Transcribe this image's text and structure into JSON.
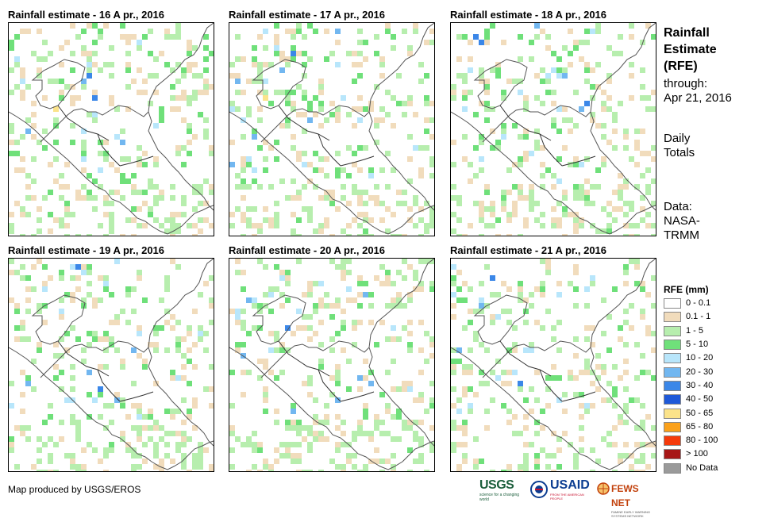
{
  "panels": [
    {
      "title": "Rainfall estimate - 16 A pr., 2016",
      "seed": 16
    },
    {
      "title": "Rainfall estimate - 17 A pr., 2016",
      "seed": 17
    },
    {
      "title": "Rainfall estimate - 18 A pr., 2016",
      "seed": 18
    },
    {
      "title": "Rainfall estimate - 19 A pr., 2016",
      "seed": 19
    },
    {
      "title": "Rainfall estimate - 20 A pr., 2016",
      "seed": 20
    },
    {
      "title": "Rainfall estimate - 21 A pr., 2016",
      "seed": 21
    }
  ],
  "side": {
    "title_line1": "Rainfall",
    "title_line2": "Estimate",
    "title_line3": "(RFE)",
    "through": "through:",
    "date": "Apr 21, 2016",
    "daily1": "Daily",
    "daily2": "Totals",
    "data1": "Data:",
    "data2": "NASA-",
    "data3": "TRMM"
  },
  "legend": {
    "title": "RFE (mm)",
    "items": [
      {
        "label": "0 - 0.1",
        "color": "#ffffff"
      },
      {
        "label": "0.1 - 1",
        "color": "#f1dcbc"
      },
      {
        "label": "1 - 5",
        "color": "#b7eeae"
      },
      {
        "label": "5 - 10",
        "color": "#6fe07a"
      },
      {
        "label": "10 - 20",
        "color": "#b8e6fb"
      },
      {
        "label": "20 - 30",
        "color": "#72b7f0"
      },
      {
        "label": "30 - 40",
        "color": "#3b87e8"
      },
      {
        "label": "40 - 50",
        "color": "#1e59d8"
      },
      {
        "label": "50 - 65",
        "color": "#fbe38a"
      },
      {
        "label": "65 - 80",
        "color": "#fba11a"
      },
      {
        "label": "80 - 100",
        "color": "#f53a0b"
      },
      {
        "label": "> 100",
        "color": "#a71616"
      },
      {
        "label": "No Data",
        "color": "#9a9a9a"
      }
    ]
  },
  "footer": {
    "credit": "Map produced by USGS/EROS",
    "usgs": "USGS",
    "usgs_tagline": "science for a changing world",
    "usaid": "USAID",
    "usaid_tagline": "FROM THE AMERICAN PEOPLE",
    "fews": "FEWS NET",
    "fews_tagline": "FAMINE EARLY WARNING SYSTEMS NETWORK"
  }
}
